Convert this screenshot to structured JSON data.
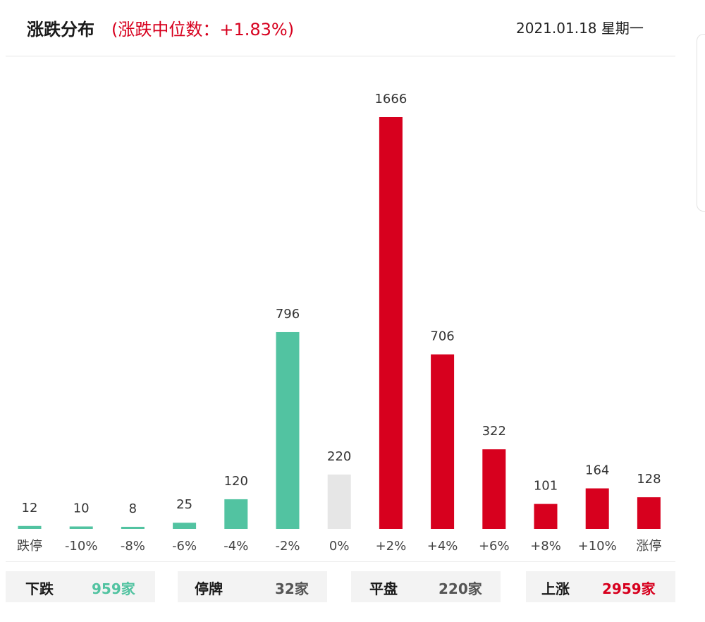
{
  "header": {
    "title": "涨跌分布",
    "subtitle": "(涨跌中位数：+1.83%)",
    "date": "2021.01.18 星期一"
  },
  "colors": {
    "up": "#d7001e",
    "down": "#52c3a1",
    "flat": "#e6e6e6",
    "value_label": "#333333",
    "tick_label": "#444444"
  },
  "chart_data": {
    "type": "bar",
    "title": "涨跌分布",
    "categories": [
      "跌停",
      "-10%",
      "-8%",
      "-6%",
      "-4%",
      "-2%",
      "0%",
      "+2%",
      "+4%",
      "+6%",
      "+8%",
      "+10%",
      "涨停"
    ],
    "values": [
      12,
      10,
      8,
      25,
      120,
      796,
      220,
      1666,
      706,
      322,
      101,
      164,
      128
    ],
    "bar_colors": [
      "down",
      "down",
      "down",
      "down",
      "down",
      "down",
      "flat",
      "up",
      "up",
      "up",
      "up",
      "up",
      "up"
    ],
    "xlabel": "",
    "ylabel": "",
    "grid": false,
    "legend": "none"
  },
  "summary": [
    {
      "label": "下跌",
      "value": "959家",
      "color": "#52c3a1"
    },
    {
      "label": "停牌",
      "value": "32家",
      "color": "#555555"
    },
    {
      "label": "平盘",
      "value": "220家",
      "color": "#555555"
    },
    {
      "label": "上涨",
      "value": "2959家",
      "color": "#d7001e"
    }
  ]
}
